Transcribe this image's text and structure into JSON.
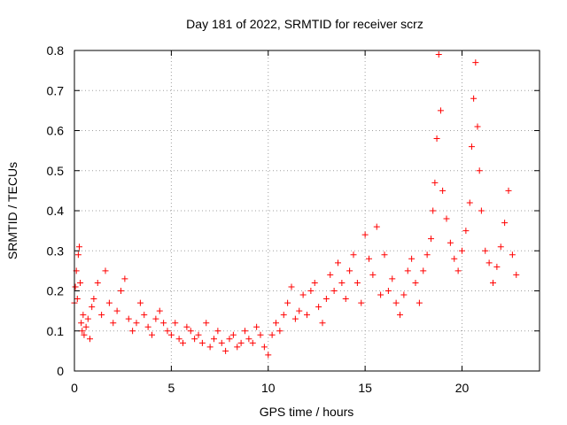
{
  "chart_data": {
    "type": "scatter",
    "title": "Day 181 of 2022, SRMTID for receiver scrz",
    "xlabel": "GPS time / hours",
    "ylabel": "SRMTID / TECUs",
    "xlim": [
      0,
      24
    ],
    "ylim": [
      0,
      0.8
    ],
    "x_ticks": [
      0,
      5,
      10,
      15,
      20
    ],
    "x_tick_labels": [
      "0",
      "5",
      "10",
      "15",
      "20"
    ],
    "y_ticks": [
      0,
      0.1,
      0.2,
      0.3,
      0.4,
      0.5,
      0.6,
      0.7,
      0.8
    ],
    "y_tick_labels": [
      "0",
      "0.1",
      "0.2",
      "0.3",
      "0.4",
      "0.5",
      "0.6",
      "0.7",
      "0.8"
    ],
    "grid": true,
    "marker": "plus",
    "series": [
      {
        "name": "SRMTID",
        "color": "#ff0000",
        "x": [
          0.0,
          0.05,
          0.1,
          0.15,
          0.2,
          0.25,
          0.3,
          0.35,
          0.4,
          0.45,
          0.5,
          0.6,
          0.7,
          0.8,
          0.9,
          1.0,
          1.2,
          1.4,
          1.6,
          1.8,
          2.0,
          2.2,
          2.4,
          2.6,
          2.8,
          3.0,
          3.2,
          3.4,
          3.6,
          3.8,
          4.0,
          4.2,
          4.4,
          4.6,
          4.8,
          5.0,
          5.2,
          5.4,
          5.6,
          5.8,
          6.0,
          6.2,
          6.4,
          6.6,
          6.8,
          7.0,
          7.2,
          7.4,
          7.6,
          7.8,
          8.0,
          8.2,
          8.4,
          8.6,
          8.8,
          9.0,
          9.2,
          9.4,
          9.6,
          9.8,
          10.0,
          10.2,
          10.4,
          10.6,
          10.8,
          11.0,
          11.2,
          11.4,
          11.6,
          11.8,
          12.0,
          12.2,
          12.4,
          12.6,
          12.8,
          13.0,
          13.2,
          13.4,
          13.6,
          13.8,
          14.0,
          14.2,
          14.4,
          14.6,
          14.8,
          15.0,
          15.2,
          15.4,
          15.6,
          15.8,
          16.0,
          16.2,
          16.4,
          16.6,
          16.8,
          17.0,
          17.2,
          17.4,
          17.6,
          17.8,
          18.0,
          18.2,
          18.4,
          18.5,
          18.6,
          18.7,
          18.8,
          18.9,
          19.0,
          19.2,
          19.4,
          19.6,
          19.8,
          20.0,
          20.2,
          20.4,
          20.5,
          20.6,
          20.7,
          20.8,
          20.9,
          21.0,
          21.2,
          21.4,
          21.6,
          21.8,
          22.0,
          22.2,
          22.4,
          22.6,
          22.8
        ],
        "y": [
          0.17,
          0.21,
          0.25,
          0.18,
          0.29,
          0.31,
          0.22,
          0.12,
          0.1,
          0.14,
          0.09,
          0.11,
          0.13,
          0.08,
          0.16,
          0.18,
          0.22,
          0.14,
          0.25,
          0.17,
          0.12,
          0.15,
          0.2,
          0.23,
          0.13,
          0.1,
          0.12,
          0.17,
          0.14,
          0.11,
          0.09,
          0.13,
          0.15,
          0.12,
          0.1,
          0.09,
          0.12,
          0.08,
          0.07,
          0.11,
          0.1,
          0.08,
          0.09,
          0.07,
          0.12,
          0.06,
          0.08,
          0.1,
          0.07,
          0.05,
          0.08,
          0.09,
          0.06,
          0.07,
          0.1,
          0.08,
          0.07,
          0.11,
          0.09,
          0.06,
          0.04,
          0.09,
          0.12,
          0.1,
          0.14,
          0.17,
          0.21,
          0.13,
          0.15,
          0.19,
          0.14,
          0.2,
          0.22,
          0.16,
          0.12,
          0.18,
          0.24,
          0.2,
          0.27,
          0.22,
          0.18,
          0.25,
          0.29,
          0.22,
          0.17,
          0.34,
          0.28,
          0.24,
          0.36,
          0.19,
          0.29,
          0.2,
          0.23,
          0.17,
          0.14,
          0.19,
          0.25,
          0.28,
          0.22,
          0.17,
          0.25,
          0.29,
          0.33,
          0.4,
          0.47,
          0.58,
          0.79,
          0.65,
          0.45,
          0.38,
          0.32,
          0.28,
          0.25,
          0.3,
          0.35,
          0.42,
          0.56,
          0.68,
          0.77,
          0.61,
          0.5,
          0.4,
          0.3,
          0.27,
          0.22,
          0.26,
          0.31,
          0.37,
          0.45,
          0.29,
          0.24
        ]
      }
    ]
  }
}
